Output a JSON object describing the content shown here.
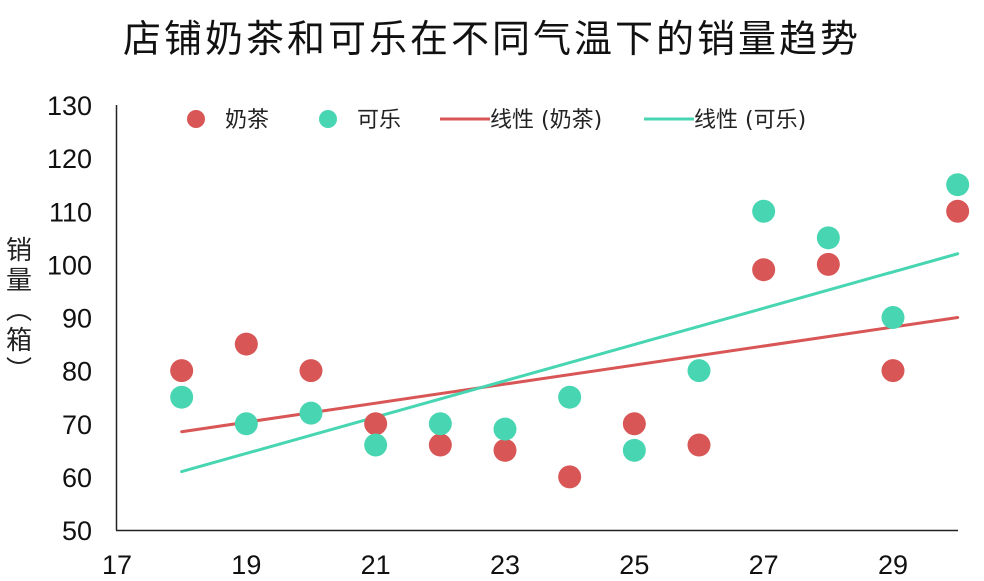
{
  "title": "店铺奶茶和可乐在不同气温下的销量趋势",
  "colors": {
    "milk_tea": "#d95656",
    "cola": "#48d6b2",
    "axis": "#222222"
  },
  "legend": {
    "items": [
      {
        "label": "奶茶",
        "kind": "marker",
        "color": "#d95656"
      },
      {
        "label": "可乐",
        "kind": "marker",
        "color": "#48d6b2"
      },
      {
        "label": "线性 (奶茶)",
        "kind": "line",
        "color": "#d95656"
      },
      {
        "label": "线性 (可乐)",
        "kind": "line",
        "color": "#48d6b2"
      }
    ]
  },
  "ylabel_chars": [
    "销",
    "量",
    "︵",
    "箱",
    "︶"
  ],
  "chart_data": {
    "type": "scatter",
    "title": "店铺奶茶和可乐在不同气温下的销量趋势",
    "xlabel": "",
    "ylabel": "销量（箱）",
    "xlim": [
      17,
      30
    ],
    "ylim": [
      50,
      130
    ],
    "x_ticks": [
      17,
      19,
      21,
      23,
      25,
      27,
      29
    ],
    "y_ticks": [
      50,
      60,
      70,
      80,
      90,
      100,
      110,
      120,
      130
    ],
    "grid": false,
    "legend_position": "top",
    "x": [
      18,
      19,
      20,
      21,
      22,
      23,
      24,
      25,
      26,
      27,
      28,
      29,
      30
    ],
    "series": [
      {
        "name": "奶茶",
        "color": "#d95656",
        "values": [
          80,
          85,
          80,
          70,
          66,
          65,
          60,
          70,
          66,
          99,
          100,
          80,
          110
        ]
      },
      {
        "name": "可乐",
        "color": "#48d6b2",
        "values": [
          75,
          70,
          72,
          66,
          70,
          69,
          75,
          65,
          80,
          110,
          105,
          90,
          115
        ]
      }
    ],
    "trendlines": [
      {
        "name": "线性 (奶茶)",
        "color": "#d95656",
        "type": "linear",
        "x": [
          18,
          30
        ],
        "y": [
          68.5,
          90
        ]
      },
      {
        "name": "线性 (可乐)",
        "color": "#48d6b2",
        "type": "linear",
        "x": [
          18,
          30
        ],
        "y": [
          61,
          102
        ]
      }
    ]
  }
}
